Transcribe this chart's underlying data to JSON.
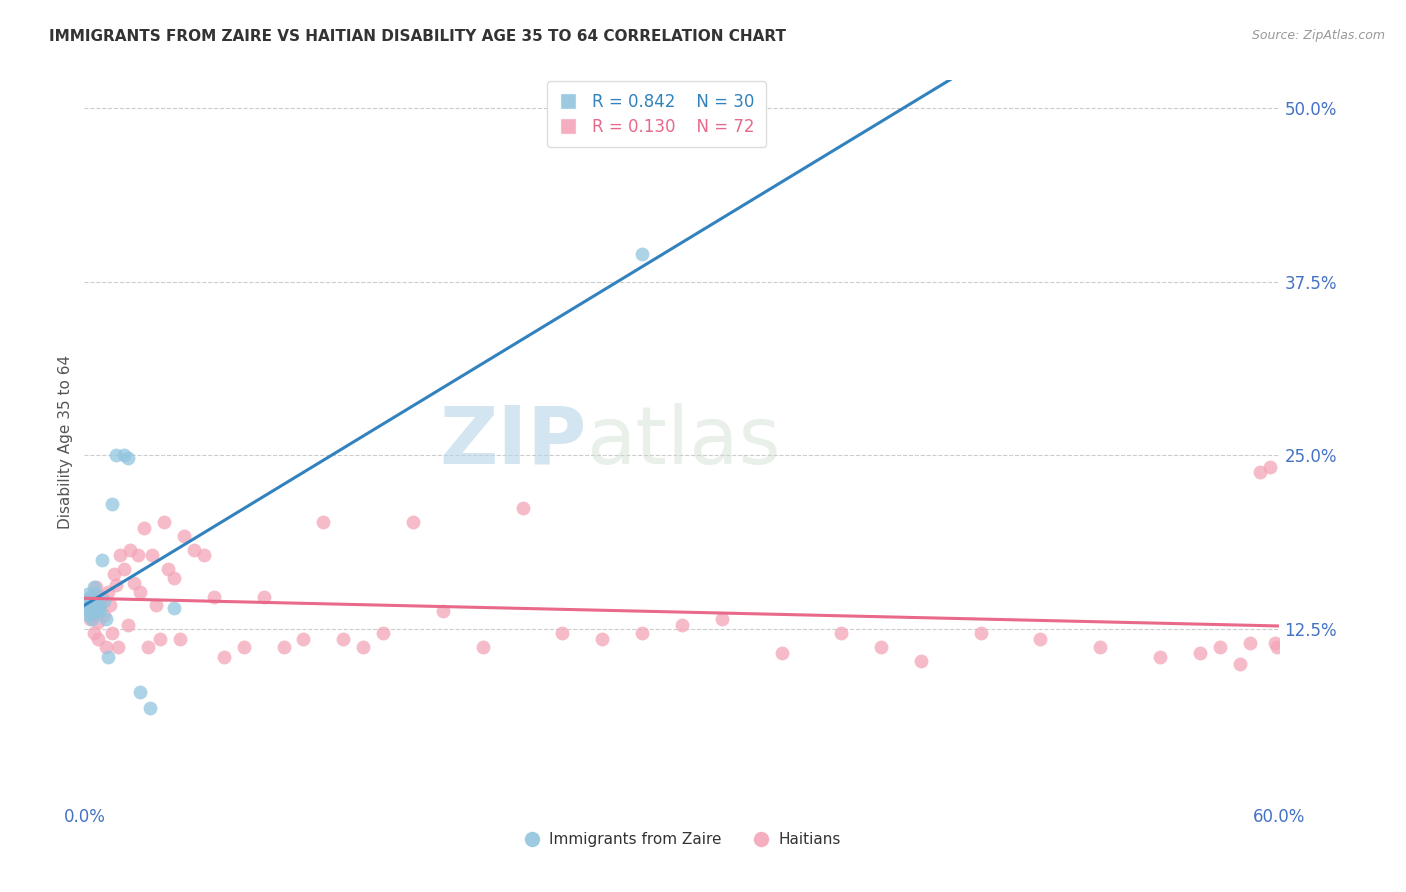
{
  "title": "IMMIGRANTS FROM ZAIRE VS HAITIAN DISABILITY AGE 35 TO 64 CORRELATION CHART",
  "source": "Source: ZipAtlas.com",
  "ylabel": "Disability Age 35 to 64",
  "xlim": [
    0.0,
    0.6
  ],
  "ylim": [
    0.0,
    0.52
  ],
  "xticks": [
    0.0,
    0.1,
    0.2,
    0.3,
    0.4,
    0.5,
    0.6
  ],
  "yticks": [
    0.125,
    0.25,
    0.375,
    0.5
  ],
  "ytick_labels": [
    "12.5%",
    "25.0%",
    "37.5%",
    "50.0%"
  ],
  "xtick_labels": [
    "0.0%",
    "",
    "",
    "",
    "",
    "",
    "60.0%"
  ],
  "blue_color": "#92c5de",
  "pink_color": "#f4a5b8",
  "blue_line_color": "#3182bd",
  "pink_line_color": "#e8698a",
  "legend_blue_r": "R = 0.842",
  "legend_blue_n": "N = 30",
  "legend_pink_r": "R = 0.130",
  "legend_pink_n": "N = 72",
  "watermark": "ZIPatlas",
  "blue_scatter_x": [
    0.001,
    0.001,
    0.002,
    0.002,
    0.003,
    0.003,
    0.003,
    0.004,
    0.004,
    0.005,
    0.005,
    0.005,
    0.006,
    0.006,
    0.006,
    0.007,
    0.007,
    0.008,
    0.009,
    0.01,
    0.011,
    0.012,
    0.014,
    0.016,
    0.02,
    0.022,
    0.028,
    0.033,
    0.045,
    0.28
  ],
  "blue_scatter_y": [
    0.14,
    0.145,
    0.135,
    0.15,
    0.138,
    0.142,
    0.148,
    0.132,
    0.145,
    0.14,
    0.143,
    0.155,
    0.138,
    0.143,
    0.15,
    0.14,
    0.142,
    0.138,
    0.175,
    0.145,
    0.132,
    0.105,
    0.215,
    0.25,
    0.25,
    0.248,
    0.08,
    0.068,
    0.14,
    0.395
  ],
  "pink_scatter_x": [
    0.002,
    0.003,
    0.004,
    0.005,
    0.005,
    0.006,
    0.007,
    0.007,
    0.008,
    0.009,
    0.01,
    0.011,
    0.012,
    0.013,
    0.014,
    0.015,
    0.016,
    0.017,
    0.018,
    0.02,
    0.022,
    0.023,
    0.025,
    0.027,
    0.028,
    0.03,
    0.032,
    0.034,
    0.036,
    0.038,
    0.04,
    0.042,
    0.045,
    0.048,
    0.05,
    0.055,
    0.06,
    0.065,
    0.07,
    0.08,
    0.09,
    0.1,
    0.11,
    0.12,
    0.13,
    0.14,
    0.15,
    0.165,
    0.18,
    0.2,
    0.22,
    0.24,
    0.26,
    0.28,
    0.3,
    0.32,
    0.35,
    0.38,
    0.4,
    0.42,
    0.45,
    0.48,
    0.51,
    0.54,
    0.56,
    0.57,
    0.58,
    0.585,
    0.59,
    0.595,
    0.598,
    0.599
  ],
  "pink_scatter_y": [
    0.145,
    0.132,
    0.148,
    0.135,
    0.122,
    0.155,
    0.13,
    0.118,
    0.142,
    0.148,
    0.135,
    0.112,
    0.152,
    0.142,
    0.122,
    0.165,
    0.157,
    0.112,
    0.178,
    0.168,
    0.128,
    0.182,
    0.158,
    0.178,
    0.152,
    0.198,
    0.112,
    0.178,
    0.142,
    0.118,
    0.202,
    0.168,
    0.162,
    0.118,
    0.192,
    0.182,
    0.178,
    0.148,
    0.105,
    0.112,
    0.148,
    0.112,
    0.118,
    0.202,
    0.118,
    0.112,
    0.122,
    0.202,
    0.138,
    0.112,
    0.212,
    0.122,
    0.118,
    0.122,
    0.128,
    0.132,
    0.108,
    0.122,
    0.112,
    0.102,
    0.122,
    0.118,
    0.112,
    0.105,
    0.108,
    0.112,
    0.1,
    0.115,
    0.238,
    0.242,
    0.115,
    0.112
  ]
}
